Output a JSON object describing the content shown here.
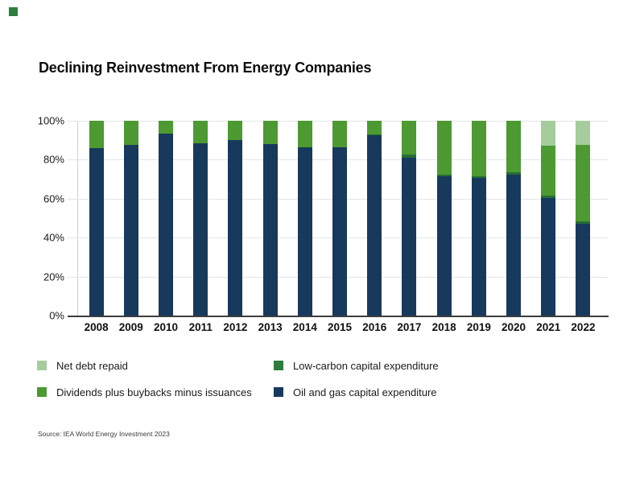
{
  "brand": {
    "color": "#2e7d3c"
  },
  "title": "Declining Reinvestment From Energy Companies",
  "source": "Source: IEA World Energy Investment 2023",
  "legend": [
    {
      "label": "Net debt repaid",
      "color": "#a5cd9b"
    },
    {
      "label": "Low-carbon capital expenditure",
      "color": "#2e7d3c"
    },
    {
      "label": "Dividends plus buybacks minus issuances",
      "color": "#4c9a31"
    },
    {
      "label": "Oil and gas capital expenditure",
      "color": "#17395c"
    }
  ],
  "chart_data": {
    "type": "bar",
    "stacked": true,
    "title": "Declining Reinvestment From Energy Companies",
    "xlabel": "",
    "ylabel": "",
    "ylim": [
      0,
      100
    ],
    "grid": true,
    "legend_position": "bottom",
    "yticks": [
      {
        "label": "100%",
        "value": 100
      },
      {
        "label": "80%",
        "value": 80
      },
      {
        "label": "60%",
        "value": 60
      },
      {
        "label": "40%",
        "value": 40
      },
      {
        "label": "20%",
        "value": 20
      },
      {
        "label": "0%",
        "value": 0
      }
    ],
    "categories": [
      "2008",
      "2009",
      "2010",
      "2011",
      "2012",
      "2013",
      "2014",
      "2015",
      "2016",
      "2017",
      "2018",
      "2019",
      "2020",
      "2021",
      "2022"
    ],
    "series": [
      {
        "name": "Oil and gas capital expenditure",
        "color": "#17395c",
        "values": [
          86,
          87.5,
          93.5,
          88.5,
          90,
          88,
          86.5,
          86.5,
          92.5,
          81,
          71.5,
          70.5,
          72.5,
          60.5,
          47
        ]
      },
      {
        "name": "Low-carbon capital expenditure",
        "color": "#256d36",
        "values": [
          0,
          0,
          0,
          0,
          0,
          0,
          0,
          0,
          0.5,
          1.5,
          1,
          1,
          1,
          1,
          1.5
        ]
      },
      {
        "name": "Dividends plus buybacks minus issuances",
        "color": "#4c9a31",
        "values": [
          14,
          12.5,
          6.5,
          11.5,
          10,
          12,
          13.5,
          13.5,
          7,
          17.5,
          27.5,
          28.5,
          26.5,
          25.5,
          39
        ]
      },
      {
        "name": "Net debt repaid",
        "color": "#a5cd9b",
        "values": [
          0,
          0,
          0,
          0,
          0,
          0,
          0,
          0,
          0,
          0,
          0,
          0,
          0,
          13,
          12.5
        ]
      }
    ]
  }
}
